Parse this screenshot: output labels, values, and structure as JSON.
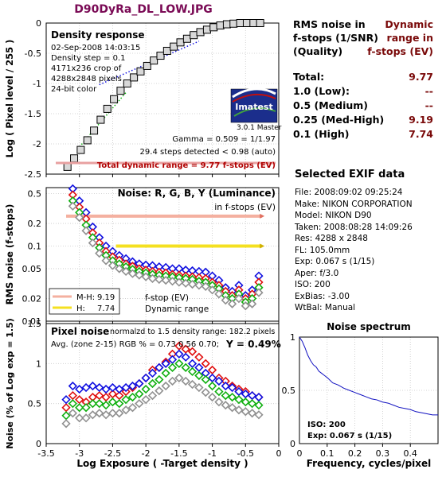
{
  "title": "D90DyRa_DL_LOW.JPG",
  "density": {
    "panel_title": "Density response",
    "info": [
      "02-Sep-2008 14:03:15",
      "Density step = 0.1",
      "4171x236 crop of",
      "4288x2848 pixels",
      "24-bit color"
    ],
    "gamma_text": "Gamma = 0.509 = 1/1.97",
    "steps_text": "29.4 steps detected < 0.98 (auto)",
    "total_text": "Total dynamic range = 9.77 f-stops (EV)",
    "logo": "Imatest",
    "logo_version": "3.0.1  Master"
  },
  "noise_panel": {
    "title": "Noise: R, G, B, Y (Luminance)",
    "subtitle": "in f-stops (EV)",
    "legend": [
      {
        "label": "M-H:",
        "value": "9.19"
      },
      {
        "label": "H:",
        "value": "7.74"
      }
    ],
    "note1": "f-stop (EV)",
    "note2": "Dynamic range"
  },
  "pixel_panel": {
    "title": "Pixel noise",
    "subtitle": "normalzd to 1.5 density range: 182.2 pixels",
    "avg_text": "Avg. (zone 2-15) RGB % = 0.73  0.56  0.70;",
    "y_text": "Y = 0.49%"
  },
  "rms": {
    "header_left": [
      "RMS noise in",
      "f-stops (1/SNR)",
      "(Quality)"
    ],
    "header_right": [
      "Dynamic",
      "range in",
      "f-stops (EV)"
    ],
    "rows": [
      {
        "label": "Total:",
        "value": "9.77"
      },
      {
        "label": "1.0   (Low):",
        "value": "--"
      },
      {
        "label": "0.5   (Medium)",
        "value": "--"
      },
      {
        "label": "0.25 (Med-High)",
        "value": "9.19"
      },
      {
        "label": "0.1   (High)",
        "value": "7.74"
      }
    ]
  },
  "exif": {
    "title": "Selected EXIF data",
    "rows": [
      "File:  2008:09:02 09:25:24",
      "Make:  NIKON CORPORATION",
      "Model: NIKON D90",
      "Taken: 2008:08:28 14:09:26",
      "Res:    4288 x 2848",
      "FL:    105.0mm",
      "Exp:   0.067 s  (1/15)",
      "Aper:  f/3.0",
      "ISO:   200",
      "ExBias:  -3.00",
      "WtBal:  Manual"
    ]
  },
  "spectrum": {
    "title": "Noise spectrum",
    "iso_text": "ISO:   200",
    "exp_text": "Exp:   0.067 s  (1/15)"
  },
  "colors": {
    "red": "#e01010",
    "green": "#10b010",
    "blue": "#1010e0",
    "gray": "#909090",
    "mh_line": "#f4b0a0",
    "h_line": "#f4e020",
    "title": "#7a0a55",
    "value": "#7a0a0a"
  },
  "chart_data": [
    {
      "type": "scatter",
      "title": "Density response",
      "xlabel": "Log Exposure ( -Target density )",
      "ylabel": "Log ( Pixel level / 255 )",
      "xlim": [
        -3.5,
        0
      ],
      "ylim": [
        -2.5,
        0
      ],
      "xticks": [
        "-3.5",
        "-3",
        "-2.5",
        "-2",
        "-1.5",
        "-1",
        "-0.5",
        "0"
      ],
      "yticks": [
        "-2.5",
        "-2",
        "-1.5",
        "-1",
        "-0.5",
        "0"
      ],
      "x": [
        -3.18,
        -3.08,
        -2.98,
        -2.88,
        -2.78,
        -2.68,
        -2.58,
        -2.48,
        -2.38,
        -2.28,
        -2.18,
        -2.08,
        -1.98,
        -1.88,
        -1.78,
        -1.68,
        -1.58,
        -1.48,
        -1.38,
        -1.28,
        -1.18,
        -1.08,
        -0.98,
        -0.88,
        -0.78,
        -0.68,
        -0.58,
        -0.48,
        -0.38,
        -0.28
      ],
      "y": [
        -2.38,
        -2.24,
        -2.1,
        -1.94,
        -1.78,
        -1.6,
        -1.42,
        -1.26,
        -1.12,
        -1.0,
        -0.9,
        -0.8,
        -0.71,
        -0.62,
        -0.54,
        -0.46,
        -0.39,
        -0.32,
        -0.26,
        -0.2,
        -0.15,
        -0.11,
        -0.07,
        -0.04,
        -0.02,
        -0.01,
        0.0,
        0.0,
        0.0,
        0.0
      ],
      "fit_lines": [
        {
          "color": "blue",
          "style": "dotted",
          "x": [
            -2.7,
            -1.2
          ],
          "y": [
            -1.02,
            -0.3
          ]
        },
        {
          "color": "green",
          "style": "dotted",
          "x": [
            -3.0,
            -2.3
          ],
          "y": [
            -2.05,
            -1.15
          ]
        }
      ]
    },
    {
      "type": "scatter",
      "title": "Noise: R, G, B, Y (Luminance)",
      "ylabel": "RMS noise (f-stops)",
      "xlim": [
        -3.5,
        0
      ],
      "ylim": [
        0.01,
        0.6
      ],
      "log_y": true,
      "yticks": [
        "0.5",
        "0.2",
        "0.1",
        "0.05",
        "0.02",
        "0.01"
      ],
      "x": [
        -3.1,
        -3.0,
        -2.9,
        -2.8,
        -2.7,
        -2.6,
        -2.5,
        -2.4,
        -2.3,
        -2.2,
        -2.1,
        -2.0,
        -1.9,
        -1.8,
        -1.7,
        -1.6,
        -1.5,
        -1.4,
        -1.3,
        -1.2,
        -1.1,
        -1.0,
        -0.9,
        -0.8,
        -0.7,
        -0.6,
        -0.5,
        -0.4,
        -0.3
      ],
      "series": [
        {
          "name": "B",
          "color": "blue",
          "values": [
            0.58,
            0.4,
            0.28,
            0.18,
            0.13,
            0.1,
            0.085,
            0.075,
            0.068,
            0.062,
            0.058,
            0.056,
            0.055,
            0.053,
            0.052,
            0.05,
            0.05,
            0.048,
            0.047,
            0.046,
            0.045,
            0.04,
            0.035,
            0.028,
            0.025,
            0.03,
            0.022,
            0.026,
            0.04
          ]
        },
        {
          "name": "R",
          "color": "red",
          "values": [
            0.48,
            0.33,
            0.23,
            0.15,
            0.11,
            0.085,
            0.072,
            0.065,
            0.058,
            0.054,
            0.05,
            0.048,
            0.046,
            0.045,
            0.044,
            0.042,
            0.041,
            0.04,
            0.039,
            0.038,
            0.037,
            0.033,
            0.03,
            0.025,
            0.022,
            0.026,
            0.02,
            0.023,
            0.033
          ]
        },
        {
          "name": "G",
          "color": "green",
          "values": [
            0.4,
            0.28,
            0.19,
            0.13,
            0.095,
            0.075,
            0.064,
            0.058,
            0.053,
            0.049,
            0.046,
            0.044,
            0.042,
            0.041,
            0.04,
            0.039,
            0.038,
            0.037,
            0.036,
            0.034,
            0.033,
            0.03,
            0.027,
            0.022,
            0.02,
            0.023,
            0.018,
            0.02,
            0.028
          ]
        },
        {
          "name": "Y",
          "color": "gray",
          "values": [
            0.34,
            0.24,
            0.16,
            0.11,
            0.08,
            0.064,
            0.055,
            0.05,
            0.046,
            0.043,
            0.041,
            0.039,
            0.037,
            0.036,
            0.035,
            0.034,
            0.033,
            0.032,
            0.031,
            0.03,
            0.029,
            0.026,
            0.023,
            0.019,
            0.017,
            0.02,
            0.016,
            0.017,
            0.024
          ]
        }
      ],
      "thresholds": [
        {
          "name": "M-H",
          "y": 0.25,
          "x": [
            -3.2,
            -0.25
          ],
          "color": "mh"
        },
        {
          "name": "H",
          "y": 0.1,
          "x": [
            -2.45,
            -0.25
          ],
          "color": "h"
        }
      ]
    },
    {
      "type": "scatter",
      "title": "Pixel noise",
      "xlabel": "Log Exposure ( -Target density )",
      "ylabel": "Noise (% of Log exp = 1.5)",
      "xlim": [
        -3.5,
        0
      ],
      "ylim": [
        0,
        1.5
      ],
      "xticks": [
        "-3.5",
        "-3",
        "-2.5",
        "-2",
        "-1.5",
        "-1",
        "-0.5",
        "0"
      ],
      "yticks": [
        "0",
        "0.5",
        "1",
        "1.5"
      ],
      "x": [
        -3.2,
        -3.1,
        -3.0,
        -2.9,
        -2.8,
        -2.7,
        -2.6,
        -2.5,
        -2.4,
        -2.3,
        -2.2,
        -2.1,
        -2.0,
        -1.9,
        -1.8,
        -1.7,
        -1.6,
        -1.5,
        -1.4,
        -1.3,
        -1.2,
        -1.1,
        -1.0,
        -0.9,
        -0.8,
        -0.7,
        -0.6,
        -0.5,
        -0.4,
        -0.3
      ],
      "series": [
        {
          "name": "R",
          "color": "red",
          "values": [
            0.45,
            0.6,
            0.55,
            0.52,
            0.58,
            0.6,
            0.58,
            0.62,
            0.6,
            0.65,
            0.7,
            0.75,
            0.82,
            0.92,
            0.95,
            1.02,
            1.12,
            1.22,
            1.18,
            1.15,
            1.08,
            1.0,
            0.92,
            0.82,
            0.78,
            0.72,
            0.68,
            0.65,
            0.6,
            0.58
          ]
        },
        {
          "name": "B",
          "color": "blue",
          "values": [
            0.55,
            0.72,
            0.68,
            0.7,
            0.72,
            0.7,
            0.68,
            0.7,
            0.68,
            0.7,
            0.72,
            0.75,
            0.82,
            0.88,
            0.95,
            1.0,
            1.05,
            1.12,
            1.08,
            1.0,
            0.95,
            0.88,
            0.82,
            0.78,
            0.72,
            0.7,
            0.65,
            0.62,
            0.6,
            0.58
          ]
        },
        {
          "name": "G",
          "color": "green",
          "values": [
            0.35,
            0.5,
            0.45,
            0.45,
            0.5,
            0.5,
            0.48,
            0.52,
            0.5,
            0.55,
            0.58,
            0.62,
            0.68,
            0.75,
            0.8,
            0.88,
            0.95,
            1.0,
            0.95,
            0.9,
            0.85,
            0.8,
            0.72,
            0.65,
            0.6,
            0.58,
            0.55,
            0.52,
            0.5,
            0.48
          ]
        },
        {
          "name": "Y",
          "color": "gray",
          "values": [
            0.25,
            0.38,
            0.32,
            0.32,
            0.36,
            0.38,
            0.36,
            0.38,
            0.38,
            0.42,
            0.45,
            0.5,
            0.55,
            0.6,
            0.66,
            0.72,
            0.78,
            0.82,
            0.78,
            0.74,
            0.7,
            0.64,
            0.58,
            0.52,
            0.48,
            0.45,
            0.42,
            0.4,
            0.38,
            0.36
          ]
        }
      ]
    },
    {
      "type": "line",
      "title": "Noise spectrum",
      "xlabel": "Frequency, cycles/pixel",
      "xlim": [
        0,
        0.5
      ],
      "ylim": [
        0,
        1
      ],
      "xticks": [
        "0",
        "0.1",
        "0.2",
        "0.3",
        "0.4"
      ],
      "yticks": [
        "0",
        "0.5",
        "1"
      ],
      "x": [
        0,
        0.01,
        0.02,
        0.03,
        0.04,
        0.05,
        0.06,
        0.07,
        0.08,
        0.09,
        0.1,
        0.12,
        0.14,
        0.16,
        0.18,
        0.2,
        0.22,
        0.24,
        0.26,
        0.28,
        0.3,
        0.32,
        0.34,
        0.36,
        0.38,
        0.4,
        0.42,
        0.44,
        0.46,
        0.48,
        0.5
      ],
      "y": [
        1.0,
        0.96,
        0.9,
        0.83,
        0.78,
        0.74,
        0.72,
        0.68,
        0.66,
        0.64,
        0.62,
        0.57,
        0.55,
        0.52,
        0.5,
        0.48,
        0.46,
        0.44,
        0.42,
        0.41,
        0.39,
        0.38,
        0.36,
        0.34,
        0.33,
        0.32,
        0.3,
        0.29,
        0.28,
        0.27,
        0.27
      ]
    }
  ]
}
